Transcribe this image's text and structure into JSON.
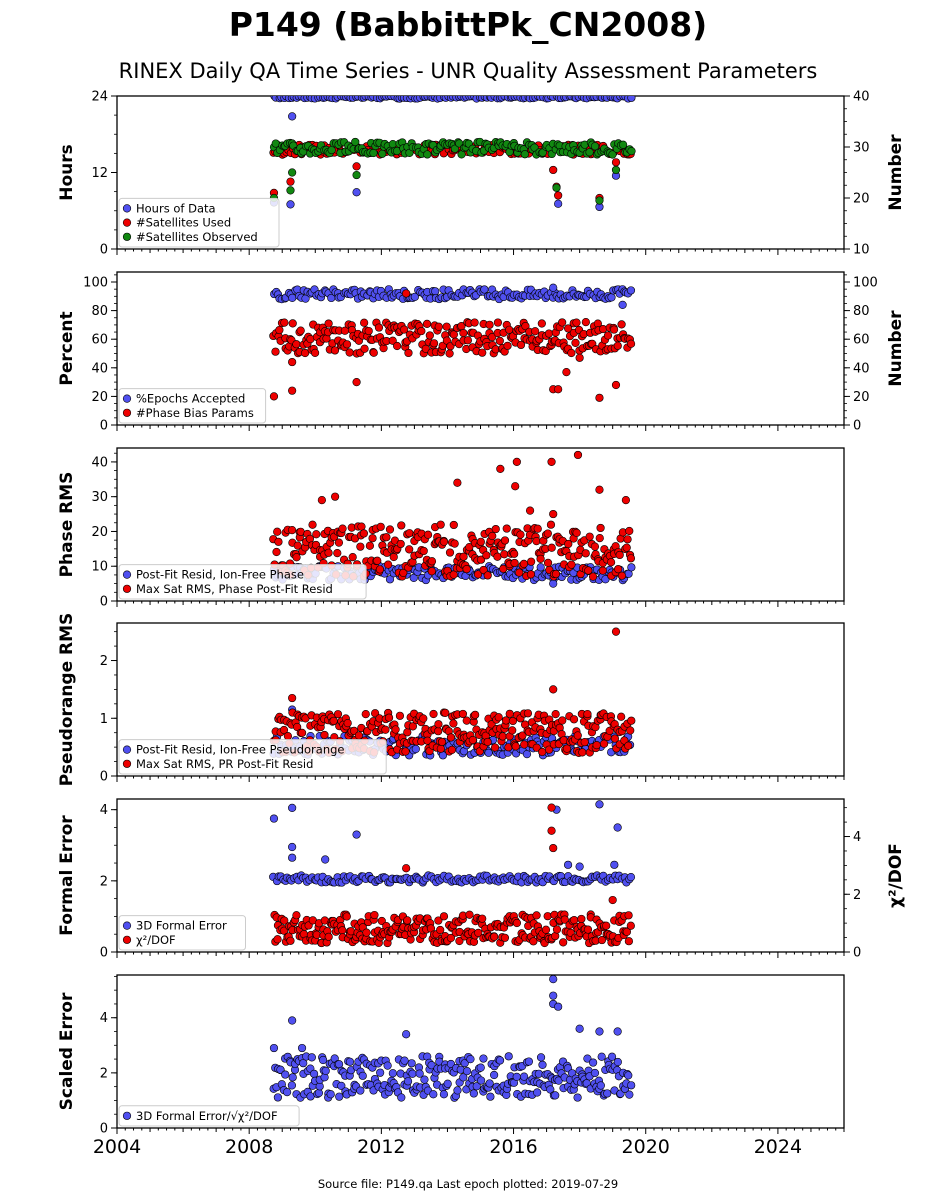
{
  "title": "P149 (BabbittPk_CN2008)",
  "subtitle": "RINEX Daily QA Time Series - UNR Quality Assessment Parameters",
  "footer": "Source file: P149.qa Last epoch plotted: 2019-07-29",
  "colors": {
    "blue": "#5050f0",
    "red": "#ee0000",
    "green": "#118811",
    "edge": "#000000"
  },
  "chart_data": [
    {
      "type": "scatter",
      "ylabel": "Hours",
      "ylabel_right": "Number",
      "xlim": [
        2004,
        2026
      ],
      "ylim": [
        0,
        24
      ],
      "ylim_right": [
        10,
        40
      ],
      "yticks": [
        0,
        12,
        24
      ],
      "yticks_right": [
        10,
        20,
        30,
        40
      ],
      "legend": "lower-left",
      "series": [
        {
          "name": "Hours of Data",
          "color": "blue",
          "axis": "left",
          "points": [
            [
              2008.75,
              7.3
            ],
            [
              2009.25,
              7.0
            ],
            [
              2009.3,
              20.8
            ],
            [
              2011.25,
              8.9
            ],
            [
              2017.35,
              7.1
            ],
            [
              2018.6,
              6.6
            ],
            [
              2019.1,
              11.5
            ]
          ],
          "band": {
            "x": [
              2008.75,
              2019.55
            ],
            "y": [
              23.6,
              24.0
            ],
            "count": 140
          }
        },
        {
          "name": "#Satellites Used",
          "color": "red",
          "axis": "right",
          "points": [
            [
              2008.75,
              21.0
            ],
            [
              2009.25,
              23.2
            ],
            [
              2009.6,
              30.0
            ],
            [
              2011.25,
              26.2
            ],
            [
              2017.2,
              25.5
            ],
            [
              2017.3,
              22.2
            ],
            [
              2017.35,
              20.5
            ],
            [
              2018.6,
              20.0
            ],
            [
              2019.1,
              27.0
            ]
          ],
          "band": {
            "x": [
              2008.75,
              2019.55
            ],
            "y": [
              28.5,
              30.5
            ],
            "count": 170
          }
        },
        {
          "name": "#Satellites Observed",
          "color": "green",
          "axis": "right",
          "points": [
            [
              2008.75,
              20.0
            ],
            [
              2009.25,
              21.5
            ],
            [
              2009.3,
              25.0
            ],
            [
              2011.25,
              24.5
            ],
            [
              2017.3,
              22.0
            ],
            [
              2018.6,
              19.5
            ],
            [
              2019.1,
              25.5
            ]
          ],
          "band": {
            "x": [
              2008.75,
              2019.55
            ],
            "y": [
              28.5,
              31.0
            ],
            "count": 180
          }
        }
      ]
    },
    {
      "type": "scatter",
      "ylabel": "Percent",
      "ylabel_right": "Number",
      "xlim": [
        2004,
        2026
      ],
      "ylim": [
        0,
        107
      ],
      "ylim_right": [
        0,
        107
      ],
      "yticks": [
        0,
        20,
        40,
        60,
        80,
        100
      ],
      "yticks_right": [
        0,
        20,
        40,
        60,
        80,
        100
      ],
      "legend": "lower-left",
      "series": [
        {
          "name": "%Epochs Accepted",
          "color": "blue",
          "axis": "left",
          "points": [
            [
              2017.2,
              96
            ],
            [
              2019.3,
              84
            ]
          ],
          "band": {
            "x": [
              2008.75,
              2019.55
            ],
            "y": [
              88,
              95
            ],
            "count": 170
          }
        },
        {
          "name": "#Phase Bias Params",
          "color": "red",
          "axis": "right",
          "points": [
            [
              2008.75,
              20
            ],
            [
              2009.3,
              24
            ],
            [
              2009.3,
              44
            ],
            [
              2011.25,
              30
            ],
            [
              2017.2,
              25
            ],
            [
              2017.35,
              25
            ],
            [
              2017.6,
              37
            ],
            [
              2018.6,
              19
            ],
            [
              2019.1,
              28
            ],
            [
              2012.75,
              92
            ],
            [
              2018.0,
              47
            ]
          ],
          "band": {
            "x": [
              2008.75,
              2019.55
            ],
            "y": [
              50,
              72
            ],
            "count": 260
          }
        }
      ]
    },
    {
      "type": "scatter",
      "ylabel": "Phase RMS",
      "xlim": [
        2004,
        2026
      ],
      "ylim": [
        0,
        44
      ],
      "yticks": [
        0,
        10,
        20,
        30,
        40
      ],
      "legend": "lower-left",
      "series": [
        {
          "name": "Post-Fit Resid, Ion-Free Phase",
          "color": "blue",
          "axis": "left",
          "points": [
            [
              2017.2,
              5
            ]
          ],
          "band": {
            "x": [
              2008.75,
              2019.55
            ],
            "y": [
              6,
              10
            ],
            "count": 170
          }
        },
        {
          "name": "Max Sat RMS, Phase Post-Fit Resid",
          "color": "red",
          "axis": "left",
          "points": [
            [
              2010.2,
              29
            ],
            [
              2010.6,
              30
            ],
            [
              2014.3,
              34
            ],
            [
              2015.6,
              38
            ],
            [
              2016.05,
              33
            ],
            [
              2016.1,
              40
            ],
            [
              2017.15,
              40
            ],
            [
              2017.95,
              42
            ],
            [
              2018.6,
              32
            ],
            [
              2019.4,
              29
            ],
            [
              2016.5,
              26
            ],
            [
              2017.2,
              25
            ]
          ],
          "band": {
            "x": [
              2008.75,
              2019.55
            ],
            "y": [
              7,
              22
            ],
            "count": 300
          }
        }
      ]
    },
    {
      "type": "scatter",
      "ylabel": "Pseudorange RMS",
      "xlim": [
        2004,
        2026
      ],
      "ylim": [
        0,
        2.65
      ],
      "yticks": [
        0,
        1,
        2
      ],
      "legend": "lower-left",
      "series": [
        {
          "name": "Post-Fit Resid, Ion-Free Pseudorange",
          "color": "blue",
          "axis": "left",
          "points": [
            [
              2009.3,
              1.15
            ]
          ],
          "band": {
            "x": [
              2008.75,
              2019.55
            ],
            "y": [
              0.35,
              0.7
            ],
            "count": 170
          }
        },
        {
          "name": "Max Sat RMS, PR Post-Fit Resid",
          "color": "red",
          "axis": "left",
          "points": [
            [
              2009.3,
              1.35
            ],
            [
              2017.2,
              1.5
            ],
            [
              2019.1,
              2.5
            ]
          ],
          "band": {
            "x": [
              2008.75,
              2019.55
            ],
            "y": [
              0.4,
              1.1
            ],
            "count": 300
          }
        }
      ]
    },
    {
      "type": "scatter",
      "ylabel": "Formal Error",
      "ylabel_right": "χ²/DOF",
      "xlim": [
        2004,
        2026
      ],
      "ylim": [
        0,
        4.3
      ],
      "ylim_right": [
        0,
        5.3
      ],
      "yticks": [
        0,
        2,
        4
      ],
      "yticks_right": [
        0,
        2,
        4
      ],
      "legend": "lower-left",
      "series": [
        {
          "name": "3D Formal Error",
          "color": "blue",
          "axis": "left",
          "points": [
            [
              2008.75,
              3.75
            ],
            [
              2009.3,
              4.05
            ],
            [
              2009.3,
              2.95
            ],
            [
              2009.3,
              2.65
            ],
            [
              2010.3,
              2.6
            ],
            [
              2011.25,
              3.3
            ],
            [
              2017.3,
              4.0
            ],
            [
              2017.65,
              2.45
            ],
            [
              2018.0,
              2.4
            ],
            [
              2018.6,
              4.15
            ],
            [
              2019.05,
              2.45
            ],
            [
              2019.15,
              3.5
            ]
          ],
          "band": {
            "x": [
              2008.75,
              2019.55
            ],
            "y": [
              1.95,
              2.15
            ],
            "count": 160
          }
        },
        {
          "name": "χ²/DOF",
          "color": "red",
          "axis": "right",
          "points": [
            [
              2017.15,
              5.0
            ],
            [
              2017.15,
              4.2
            ],
            [
              2017.2,
              3.6
            ],
            [
              2012.75,
              2.9
            ],
            [
              2019.0,
              1.8
            ]
          ],
          "band": {
            "x": [
              2008.75,
              2019.55
            ],
            "y": [
              0.3,
              1.3
            ],
            "count": 300
          }
        }
      ]
    },
    {
      "type": "scatter",
      "ylabel": "Scaled Error",
      "xlim": [
        2004,
        2026
      ],
      "ylim": [
        0,
        5.55
      ],
      "yticks": [
        0,
        2,
        4
      ],
      "xticks": [
        2004,
        2008,
        2012,
        2016,
        2020,
        2024
      ],
      "legend": "lower-left",
      "series": [
        {
          "name": "3D Formal Error/√χ²/DOF",
          "color": "blue",
          "axis": "left",
          "points": [
            [
              2008.75,
              2.9
            ],
            [
              2009.3,
              3.9
            ],
            [
              2012.75,
              3.4
            ],
            [
              2017.2,
              5.4
            ],
            [
              2017.2,
              4.8
            ],
            [
              2017.2,
              4.5
            ],
            [
              2017.35,
              4.4
            ],
            [
              2018.0,
              3.6
            ],
            [
              2018.6,
              3.5
            ],
            [
              2019.15,
              3.5
            ],
            [
              2009.6,
              2.9
            ]
          ],
          "band": {
            "x": [
              2008.75,
              2019.55
            ],
            "y": [
              1.1,
              2.6
            ],
            "count": 300
          }
        }
      ]
    }
  ]
}
